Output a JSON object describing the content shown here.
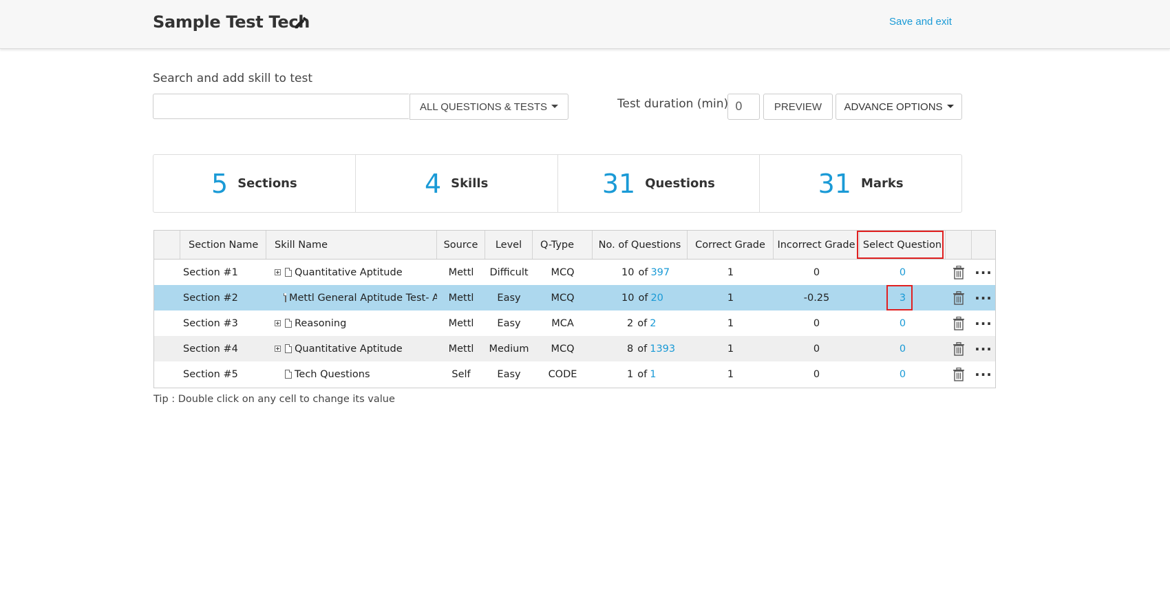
{
  "header": {
    "title": "Sample Test Tech",
    "save_exit": "Save and exit"
  },
  "search": {
    "label": "Search and add skill to test",
    "placeholder": "",
    "filter_label": "ALL QUESTIONS & TESTS"
  },
  "duration": {
    "label": "Test duration (min)",
    "value": "0"
  },
  "buttons": {
    "preview": "PREVIEW",
    "advance": "ADVANCE OPTIONS"
  },
  "stats": [
    {
      "value": "5",
      "label": "Sections"
    },
    {
      "value": "4",
      "label": "Skills"
    },
    {
      "value": "31",
      "label": "Questions"
    },
    {
      "value": "31",
      "label": "Marks"
    }
  ],
  "table": {
    "headers": {
      "section": "Section Name",
      "skill": "Skill Name",
      "source": "Source",
      "level": "Level",
      "qtype": "Q-Type",
      "num_questions": "No. of  Questions",
      "correct": "Correct Grade",
      "incorrect": "Incorrect Grade",
      "select": "Select Question"
    },
    "rows": [
      {
        "section": "Section #1",
        "skill": "Quantitative Aptitude",
        "expandable": true,
        "source": "Mettl",
        "level": "Difficult",
        "qtype": "MCQ",
        "count": "10",
        "of": "of",
        "total": "397",
        "correct": "1",
        "incorrect": "0",
        "select": "0"
      },
      {
        "section": "Section #2",
        "skill": "Mettl General Aptitude Test- Advanced",
        "expandable": false,
        "source": "Mettl",
        "level": "Easy",
        "qtype": "MCQ",
        "count": "10",
        "of": "of",
        "total": "20",
        "correct": "1",
        "incorrect": "-0.25",
        "select": "3"
      },
      {
        "section": "Section #3",
        "skill": "Reasoning",
        "expandable": true,
        "source": "Mettl",
        "level": "Easy",
        "qtype": "MCA",
        "count": "2",
        "of": "of",
        "total": "2",
        "correct": "1",
        "incorrect": "0",
        "select": "0"
      },
      {
        "section": "Section #4",
        "skill": "Quantitative Aptitude",
        "expandable": true,
        "source": "Mettl",
        "level": "Medium",
        "qtype": "MCQ",
        "count": "8",
        "of": "of",
        "total": "1393",
        "correct": "1",
        "incorrect": "0",
        "select": "0"
      },
      {
        "section": "Section #5",
        "skill": "Tech Questions",
        "expandable": false,
        "source": "Self",
        "level": "Easy",
        "qtype": "CODE",
        "count": "1",
        "of": "of",
        "total": "1",
        "correct": "1",
        "incorrect": "0",
        "select": "0"
      }
    ],
    "more_glyph": "···"
  },
  "tip": "Tip : Double click on any cell to change its value",
  "colors": {
    "accent": "#1a9ad6",
    "selected_row": "#add8ee",
    "highlight_box": "#e02020"
  }
}
